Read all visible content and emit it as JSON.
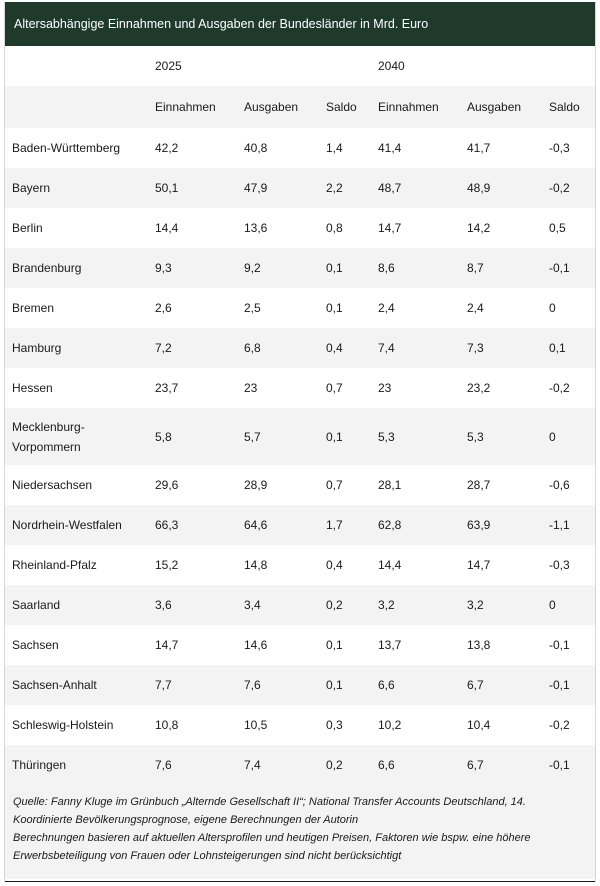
{
  "title": "Altersabhängige Einnahmen und Ausgaben der Bundesländer in Mrd. Euro",
  "years": {
    "y1": "2025",
    "y2": "2040"
  },
  "columns": {
    "einnahmen_1": "Einnahmen",
    "ausgaben_1": "Ausgaben",
    "saldo_1": "Saldo",
    "einnahmen_2": "Einnahmen",
    "ausgaben_2": "Ausgaben",
    "saldo_2": "Saldo"
  },
  "rows": [
    {
      "land": "Baden-Württemberg",
      "e25": "42,2",
      "a25": "40,8",
      "s25": "1,4",
      "e40": "41,4",
      "a40": "41,7",
      "s40": "-0,3"
    },
    {
      "land": "Bayern",
      "e25": "50,1",
      "a25": "47,9",
      "s25": "2,2",
      "e40": "48,7",
      "a40": "48,9",
      "s40": "-0,2"
    },
    {
      "land": "Berlin",
      "e25": "14,4",
      "a25": "13,6",
      "s25": "0,8",
      "e40": "14,7",
      "a40": "14,2",
      "s40": "0,5"
    },
    {
      "land": "Brandenburg",
      "e25": "9,3",
      "a25": "9,2",
      "s25": "0,1",
      "e40": "8,6",
      "a40": "8,7",
      "s40": "-0,1"
    },
    {
      "land": "Bremen",
      "e25": "2,6",
      "a25": "2,5",
      "s25": "0,1",
      "e40": "2,4",
      "a40": "2,4",
      "s40": "0"
    },
    {
      "land": "Hamburg",
      "e25": "7,2",
      "a25": "6,8",
      "s25": "0,4",
      "e40": "7,4",
      "a40": "7,3",
      "s40": "0,1"
    },
    {
      "land": "Hessen",
      "e25": "23,7",
      "a25": "23",
      "s25": "0,7",
      "e40": "23",
      "a40": "23,2",
      "s40": "-0,2"
    },
    {
      "land": "Mecklenburg-Vorpommern",
      "land_line1": "Mecklenburg-",
      "land_line2": "Vorpommern",
      "e25": "5,8",
      "a25": "5,7",
      "s25": "0,1",
      "e40": "5,3",
      "a40": "5,3",
      "s40": "0"
    },
    {
      "land": "Niedersachsen",
      "e25": "29,6",
      "a25": "28,9",
      "s25": "0,7",
      "e40": "28,1",
      "a40": "28,7",
      "s40": "-0,6"
    },
    {
      "land": "Nordrhein-Westfalen",
      "e25": "66,3",
      "a25": "64,6",
      "s25": "1,7",
      "e40": "62,8",
      "a40": "63,9",
      "s40": "-1,1"
    },
    {
      "land": "Rheinland-Pfalz",
      "e25": "15,2",
      "a25": "14,8",
      "s25": "0,4",
      "e40": "14,4",
      "a40": "14,7",
      "s40": "-0,3"
    },
    {
      "land": "Saarland",
      "e25": "3,6",
      "a25": "3,4",
      "s25": "0,2",
      "e40": "3,2",
      "a40": "3,2",
      "s40": "0"
    },
    {
      "land": "Sachsen",
      "e25": "14,7",
      "a25": "14,6",
      "s25": "0,1",
      "e40": "13,7",
      "a40": "13,8",
      "s40": "-0,1"
    },
    {
      "land": "Sachsen-Anhalt",
      "e25": "7,7",
      "a25": "7,6",
      "s25": "0,1",
      "e40": "6,6",
      "a40": "6,7",
      "s40": "-0,1"
    },
    {
      "land": "Schleswig-Holstein",
      "e25": "10,8",
      "a25": "10,5",
      "s25": "0,3",
      "e40": "10,2",
      "a40": "10,4",
      "s40": "-0,2"
    },
    {
      "land": "Thüringen",
      "e25": "7,6",
      "a25": "7,4",
      "s25": "0,2",
      "e40": "6,6",
      "a40": "6,7",
      "s40": "-0,1"
    }
  ],
  "footer": {
    "line1": "Quelle: Fanny Kluge im Grünbuch „Alternde Gesellschaft II“; National Transfer Accounts Deutschland, 14.",
    "line2": "Koordinierte Bevölkerungsprognose, eigene Berechnungen der Autorin",
    "line3": "Berechnungen basieren auf aktuellen Altersprofilen und heutigen Preisen, Faktoren wie bspw. eine höhere",
    "line4": "Erwerbsbeteiligung von Frauen oder Lohnsteigerungen sind nicht berücksichtigt"
  }
}
